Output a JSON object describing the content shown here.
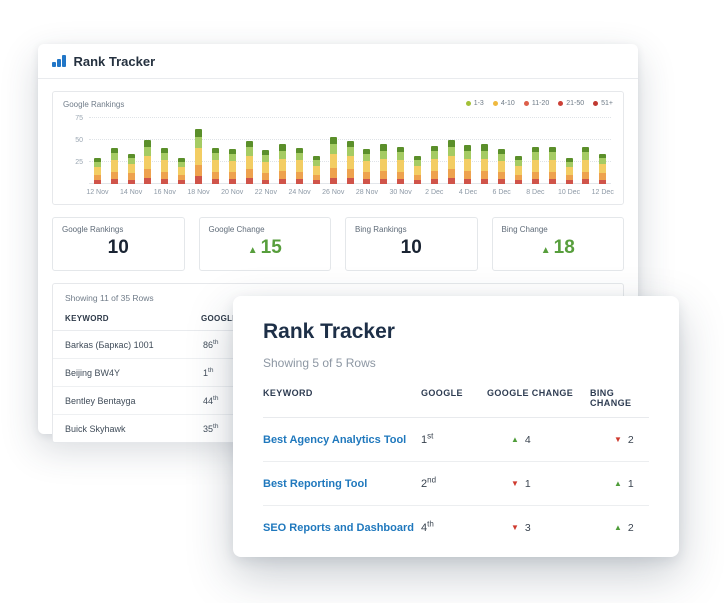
{
  "colors": {
    "accent_blue": "#2176c7",
    "link_blue": "#1f78bd",
    "up_green": "#4f9d3a",
    "down_red": "#cf3a2e",
    "heading_navy": "#1d2f47"
  },
  "back_window": {
    "title": "Rank Tracker",
    "chart_panel": {
      "title": "Google Rankings",
      "legend": [
        {
          "label": "1-3",
          "color": "#a2c037"
        },
        {
          "label": "4-10",
          "color": "#efb93f"
        },
        {
          "label": "11-20",
          "color": "#dd5f4a"
        },
        {
          "label": "21-50",
          "color": "#cc4036"
        },
        {
          "label": "51+",
          "color": "#c03931"
        }
      ]
    },
    "stat_cards": [
      {
        "label": "Google Rankings",
        "value": "10",
        "type": "plain"
      },
      {
        "label": "Google Change",
        "value": "15",
        "type": "up"
      },
      {
        "label": "Bing Rankings",
        "value": "10",
        "type": "plain"
      },
      {
        "label": "Bing Change",
        "value": "18",
        "type": "up"
      }
    ],
    "table": {
      "summary": "Showing 11 of 35 Rows",
      "columns": [
        "KEYWORD",
        "GOOGLE"
      ],
      "rows": [
        {
          "keyword": "Barkas (Баркас) 1001",
          "rank": "86",
          "suffix": "th"
        },
        {
          "keyword": "Beijing BW4Y",
          "rank": "1",
          "suffix": "th"
        },
        {
          "keyword": "Bentley Bentayga",
          "rank": "44",
          "suffix": "th"
        },
        {
          "keyword": "Buick Skyhawk",
          "rank": "35",
          "suffix": "th"
        }
      ]
    }
  },
  "front_card": {
    "title": "Rank Tracker",
    "summary": "Showing 5 of 5 Rows",
    "table": {
      "columns": [
        "KEYWORD",
        "GOOGLE",
        "GOOGLE CHANGE",
        "BING CHANGE"
      ],
      "rows": [
        {
          "keyword": "Best Agency Analytics Tool",
          "rank": "1",
          "suffix": "st",
          "google_change": {
            "dir": "up",
            "value": "4"
          },
          "bing_change": {
            "dir": "down",
            "value": "2"
          }
        },
        {
          "keyword": "Best Reporting Tool",
          "rank": "2",
          "suffix": "nd",
          "google_change": {
            "dir": "down",
            "value": "1"
          },
          "bing_change": {
            "dir": "up",
            "value": "1"
          }
        },
        {
          "keyword": "SEO Reports and Dashboard",
          "rank": "4",
          "suffix": "th",
          "google_change": {
            "dir": "down",
            "value": "3"
          },
          "bing_change": {
            "dir": "up",
            "value": "2"
          }
        }
      ]
    }
  },
  "chart_data": {
    "type": "bar",
    "stacked": true,
    "title": "Google Rankings",
    "xlabel": "",
    "ylabel": "",
    "ylim": [
      0,
      80
    ],
    "y_gridlines": [
      25,
      50,
      75
    ],
    "grid": true,
    "legend_position": "top-right",
    "tick_every": 2,
    "x": [
      "12 Nov",
      "13 Nov",
      "14 Nov",
      "15 Nov",
      "16 Nov",
      "17 Nov",
      "18 Nov",
      "19 Nov",
      "20 Nov",
      "21 Nov",
      "22 Nov",
      "23 Nov",
      "24 Nov",
      "25 Nov",
      "26 Nov",
      "27 Nov",
      "28 Nov",
      "29 Nov",
      "30 Nov",
      "1 Dec",
      "2 Dec",
      "3 Dec",
      "4 Dec",
      "5 Dec",
      "6 Dec",
      "7 Dec",
      "8 Dec",
      "9 Dec",
      "10 Dec",
      "11 Dec",
      "12 Dec"
    ],
    "series": [
      {
        "name": "51+",
        "color": "#d0544a",
        "values": [
          4,
          6,
          5,
          7,
          6,
          4,
          9,
          6,
          6,
          7,
          5,
          6,
          6,
          4,
          7,
          7,
          6,
          6,
          6,
          4,
          6,
          7,
          6,
          6,
          6,
          4,
          6,
          6,
          4,
          6,
          5
        ]
      },
      {
        "name": "21-50",
        "color": "#eea24e",
        "values": [
          6,
          8,
          7,
          10,
          8,
          6,
          13,
          8,
          8,
          10,
          8,
          9,
          8,
          6,
          11,
          10,
          8,
          9,
          8,
          6,
          9,
          10,
          9,
          9,
          8,
          6,
          8,
          8,
          6,
          8,
          7
        ]
      },
      {
        "name": "11-20",
        "color": "#f3cd63",
        "values": [
          9,
          13,
          11,
          15,
          13,
          9,
          19,
          13,
          12,
          15,
          12,
          14,
          13,
          10,
          16,
          15,
          12,
          14,
          13,
          10,
          13,
          15,
          14,
          14,
          12,
          10,
          13,
          13,
          9,
          13,
          11
        ]
      },
      {
        "name": "4-10",
        "color": "#a5cb63",
        "values": [
          6,
          8,
          7,
          10,
          8,
          6,
          13,
          8,
          8,
          10,
          8,
          9,
          8,
          7,
          11,
          10,
          8,
          9,
          9,
          7,
          9,
          10,
          9,
          9,
          8,
          7,
          9,
          9,
          6,
          9,
          7
        ]
      },
      {
        "name": "1-3",
        "color": "#5b8f2a",
        "values": [
          5,
          6,
          4,
          8,
          6,
          5,
          9,
          6,
          6,
          7,
          6,
          8,
          6,
          5,
          8,
          7,
          6,
          7,
          6,
          5,
          6,
          8,
          6,
          8,
          6,
          5,
          6,
          6,
          5,
          6,
          4
        ]
      }
    ]
  }
}
